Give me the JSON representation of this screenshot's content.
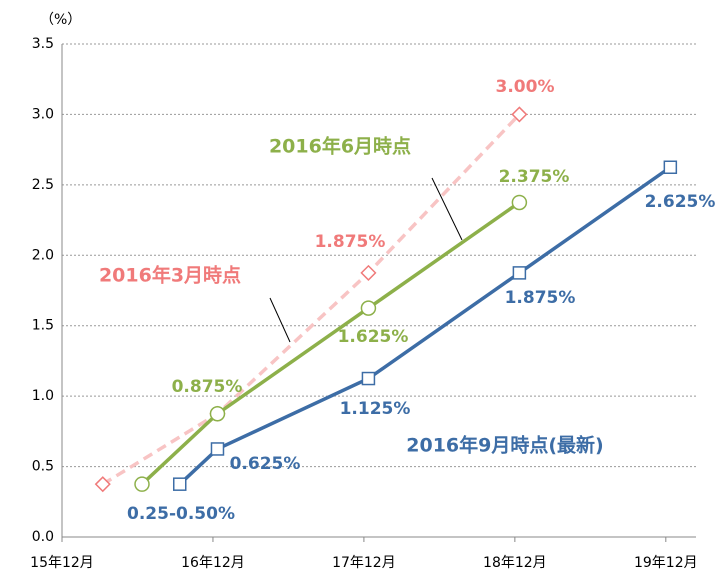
{
  "chart_data": {
    "type": "line",
    "y_label": "（%）",
    "xlim": [
      0,
      4.2
    ],
    "xticks": [
      {
        "value": 0,
        "label": "15年12月"
      },
      {
        "value": 1,
        "label": "16年12月"
      },
      {
        "value": 2,
        "label": "17年12月"
      },
      {
        "value": 3,
        "label": "18年12月"
      },
      {
        "value": 4,
        "label": "19年12月"
      }
    ],
    "ylim": [
      0,
      3.5
    ],
    "yticks": [
      {
        "value": 0,
        "label": "0.0"
      },
      0.5,
      {
        "value": 1,
        "label": "1.0"
      },
      1.5,
      {
        "value": 2,
        "label": "2.0"
      },
      2.5,
      {
        "value": 3,
        "label": "3.0"
      },
      3.5
    ],
    "grid": true,
    "series": [
      {
        "name": "2016年3月時点",
        "color": "#f07a7a",
        "line_color": "#f8c4c4",
        "dashed": true,
        "marker": "diamond",
        "x": [
          0.27,
          1.03,
          2.03,
          3.03
        ],
        "values": [
          0.375,
          0.875,
          1.875,
          3.0
        ],
        "value_labels": [
          null,
          null,
          "1.875%",
          "3.00%"
        ]
      },
      {
        "name": "2016年6月時点",
        "color": "#8db04a",
        "line_color": "#8db04a",
        "dashed": false,
        "marker": "circle",
        "x": [
          0.53,
          1.03,
          2.03,
          3.03
        ],
        "values": [
          0.375,
          0.875,
          1.625,
          2.375
        ],
        "value_labels": [
          null,
          "0.875%",
          "1.625%",
          "2.375%"
        ]
      },
      {
        "name": "2016年9月時点(最新)",
        "color": "#3d6da6",
        "line_color": "#3d6da6",
        "dashed": false,
        "marker": "square",
        "x": [
          0.78,
          1.03,
          2.03,
          3.03,
          4.03
        ],
        "values": [
          0.375,
          0.625,
          1.125,
          1.875,
          2.625
        ],
        "value_labels": [
          "0.25-0.50%",
          "0.625%",
          "1.125%",
          "1.875%",
          "2.625%"
        ]
      }
    ]
  }
}
